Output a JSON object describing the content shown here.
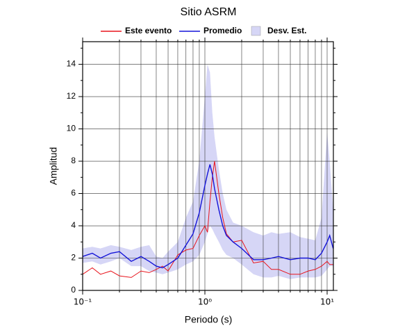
{
  "chart_data": {
    "type": "line",
    "title": "Sitio ASRM",
    "x_label": "Periodo (s)",
    "y_label": "Amplitud",
    "x_scale": "log",
    "grid": true,
    "legend": "top",
    "xlim": [
      0.1,
      11.25
    ],
    "ylim": [
      0,
      15.4
    ],
    "xticks": [
      {
        "value": 0.1,
        "label": "10⁻¹"
      },
      {
        "value": 1,
        "label": "10⁰"
      },
      {
        "value": 10,
        "label": "10¹"
      }
    ],
    "xminorticks": [
      0.2,
      0.3,
      0.4,
      0.5,
      0.6,
      0.7,
      0.8,
      0.9,
      2,
      3,
      4,
      5,
      6,
      7,
      8,
      9
    ],
    "yticks": [
      0,
      2,
      4,
      6,
      8,
      10,
      12,
      14
    ],
    "yminorticks": [
      1,
      3,
      5,
      7,
      9,
      11,
      13,
      15
    ],
    "x": [
      0.1,
      0.12,
      0.14,
      0.17,
      0.2,
      0.25,
      0.3,
      0.35,
      0.4,
      0.45,
      0.5,
      0.6,
      0.7,
      0.8,
      0.9,
      1.0,
      1.05,
      1.1,
      1.15,
      1.2,
      1.3,
      1.4,
      1.5,
      1.7,
      2.0,
      2.5,
      3,
      3.5,
      4,
      5,
      6,
      7,
      8,
      9,
      10,
      10.5,
      11.2
    ],
    "series": [
      {
        "name": "Este evento",
        "color": "#e8141c",
        "values": [
          1.0,
          1.4,
          1.0,
          1.2,
          0.9,
          0.8,
          1.2,
          1.1,
          1.3,
          1.5,
          1.2,
          2.2,
          2.5,
          2.6,
          3.4,
          4.0,
          3.6,
          5.5,
          7.0,
          8.0,
          6.0,
          4.5,
          3.5,
          3.0,
          3.1,
          1.7,
          1.8,
          1.3,
          1.3,
          1.0,
          1.0,
          1.2,
          1.3,
          1.5,
          1.8,
          1.6,
          1.6
        ]
      },
      {
        "name": "Promedio",
        "color": "#1414d8",
        "values": [
          2.1,
          2.3,
          2.0,
          2.3,
          2.4,
          1.8,
          2.1,
          1.8,
          1.5,
          1.4,
          1.6,
          2.0,
          2.8,
          3.5,
          4.8,
          6.5,
          7.2,
          7.8,
          7.2,
          6.3,
          5.0,
          4.0,
          3.4,
          3.0,
          2.6,
          1.9,
          1.9,
          2.0,
          2.1,
          1.9,
          2.0,
          2.0,
          1.9,
          2.3,
          3.0,
          3.4,
          2.6
        ]
      },
      {
        "name": "Desv. Est.",
        "color": "#d6d6f6",
        "upper": [
          2.6,
          2.7,
          2.6,
          2.8,
          2.7,
          2.5,
          2.7,
          2.8,
          2.1,
          2.0,
          2.4,
          3.0,
          4.5,
          5.5,
          8.0,
          12.0,
          14.0,
          13.5,
          11.0,
          9.5,
          7.5,
          6.0,
          5.0,
          4.2,
          4.0,
          3.6,
          3.4,
          3.6,
          3.5,
          3.6,
          3.3,
          3.2,
          3.1,
          4.5,
          9.8,
          8.0,
          5.0
        ],
        "lower": [
          1.7,
          1.8,
          1.6,
          1.8,
          2.0,
          1.5,
          1.5,
          1.2,
          1.1,
          1.0,
          1.1,
          1.3,
          1.6,
          1.8,
          2.2,
          3.0,
          3.5,
          4.0,
          3.8,
          3.5,
          3.0,
          2.5,
          2.2,
          2.0,
          1.6,
          1.0,
          0.8,
          0.8,
          0.9,
          0.7,
          0.8,
          0.8,
          0.8,
          0.9,
          1.3,
          1.5,
          1.5
        ]
      }
    ]
  }
}
